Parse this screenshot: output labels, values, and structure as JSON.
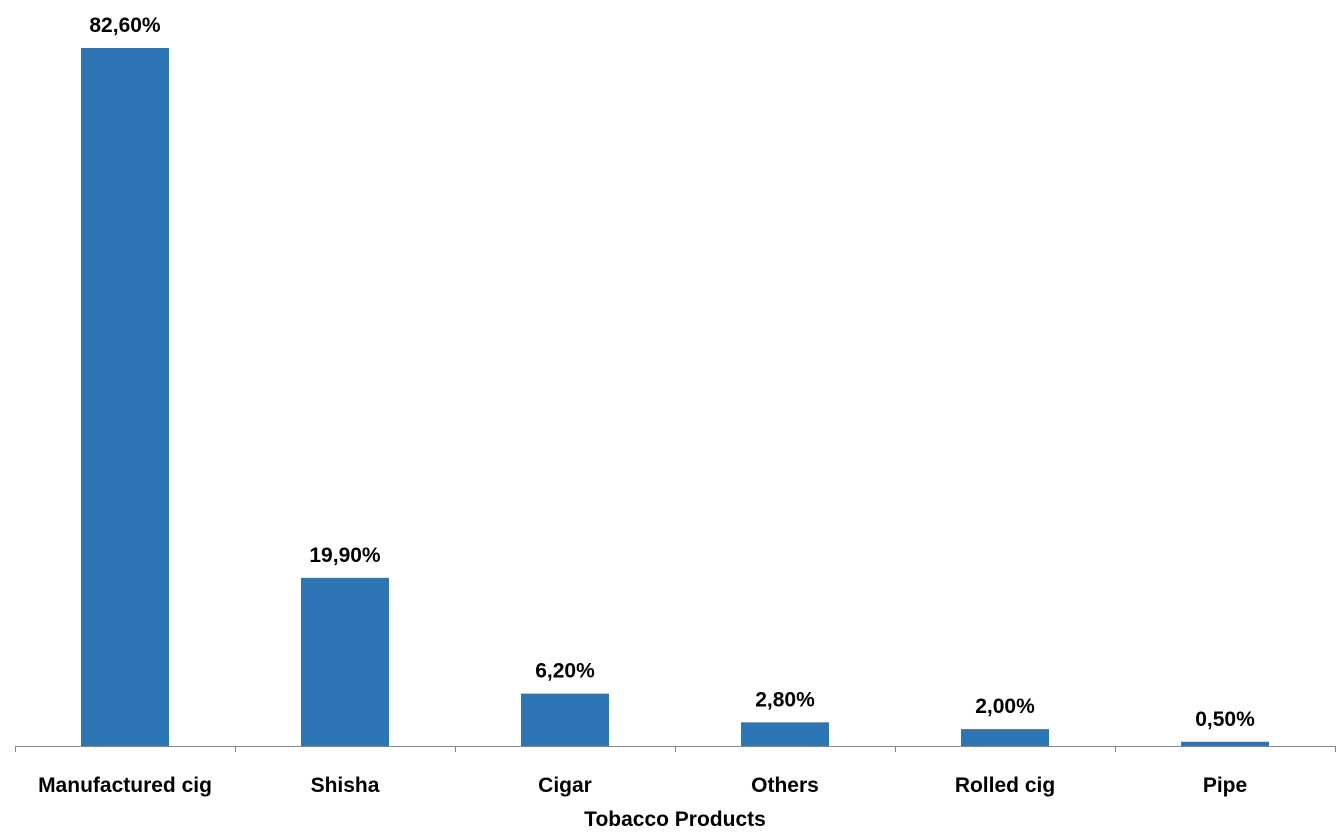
{
  "chart_data": {
    "type": "bar",
    "title": "",
    "xlabel": "Tobacco Products",
    "ylabel": "",
    "categories": [
      "Manufactured cig",
      "Shisha",
      "Cigar",
      "Others",
      "Rolled cig",
      "Pipe"
    ],
    "values": [
      82.6,
      19.9,
      6.2,
      2.8,
      2.0,
      0.5
    ],
    "data_labels": [
      "82,60%",
      "19,90%",
      "6,20%",
      "2,80%",
      "2,00%",
      "0,50%"
    ],
    "unit": "%",
    "ylim": [
      0,
      82.6
    ],
    "grid": false,
    "legend": "none",
    "bar_color": "#2E75B6"
  }
}
